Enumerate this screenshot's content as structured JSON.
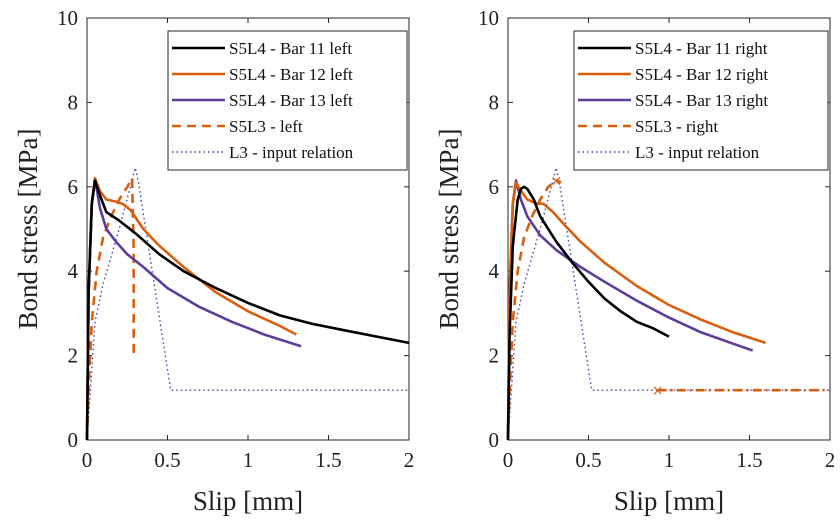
{
  "chart_data": [
    {
      "type": "line",
      "xlabel": "Slip [mm]",
      "ylabel": "Bond stress [MPa]",
      "xlim": [
        0,
        2
      ],
      "ylim": [
        0,
        10
      ],
      "xticks": [
        0,
        0.5,
        1,
        1.5,
        2
      ],
      "xtick_labels": [
        "0",
        "0.5",
        "1",
        "1.5",
        "2"
      ],
      "yticks": [
        0,
        2,
        4,
        6,
        8,
        10
      ],
      "ytick_labels": [
        "0",
        "2",
        "4",
        "6",
        "8",
        "10"
      ],
      "legend_position": "top-right",
      "series": [
        {
          "name": "S5L4 - Bar 11 left",
          "color": "#000000",
          "style": "solid",
          "x": [
            0,
            0.01,
            0.03,
            0.05,
            0.08,
            0.12,
            0.2,
            0.3,
            0.45,
            0.6,
            0.8,
            1.0,
            1.2,
            1.4,
            1.6,
            1.8,
            2.0
          ],
          "y": [
            0,
            3.5,
            5.6,
            6.15,
            5.8,
            5.4,
            5.2,
            4.9,
            4.4,
            4.0,
            3.6,
            3.25,
            2.95,
            2.75,
            2.6,
            2.45,
            2.3
          ]
        },
        {
          "name": "S5L4 - Bar 12 left",
          "color": "#d95f0e",
          "style": "solid",
          "x": [
            0,
            0.01,
            0.03,
            0.05,
            0.08,
            0.12,
            0.18,
            0.22,
            0.27,
            0.35,
            0.45,
            0.6,
            0.8,
            1.0,
            1.2,
            1.3
          ],
          "y": [
            0,
            3.5,
            5.6,
            6.2,
            5.9,
            5.7,
            5.65,
            5.6,
            5.45,
            5.0,
            4.6,
            4.1,
            3.5,
            3.05,
            2.7,
            2.5
          ]
        },
        {
          "name": "S5L4 - Bar 13 left",
          "color": "#5e3c99",
          "style": "solid",
          "x": [
            0,
            0.01,
            0.03,
            0.05,
            0.08,
            0.12,
            0.18,
            0.25,
            0.35,
            0.5,
            0.7,
            0.9,
            1.1,
            1.33
          ],
          "y": [
            0,
            3.5,
            5.6,
            6.2,
            5.5,
            5.0,
            4.7,
            4.4,
            4.1,
            3.6,
            3.15,
            2.8,
            2.5,
            2.22
          ]
        },
        {
          "name": "S5L3 - left",
          "color": "#d95f0e",
          "style": "dashed",
          "x": [
            0,
            0.01,
            0.03,
            0.06,
            0.1,
            0.15,
            0.2,
            0.25,
            0.28,
            0.29,
            0.29
          ],
          "y": [
            0,
            1.2,
            2.8,
            4.0,
            4.8,
            5.3,
            5.7,
            6.0,
            6.2,
            4.5,
            2.0
          ]
        },
        {
          "name": "L3 - input relation",
          "color": "#4444aa",
          "style": "dotted",
          "x": [
            0,
            0.05,
            0.1,
            0.2,
            0.3,
            0.32,
            0.52,
            1.0,
            2.0
          ],
          "y": [
            0,
            2.8,
            3.7,
            5.0,
            6.45,
            6.1,
            1.18,
            1.18,
            1.18
          ]
        }
      ]
    },
    {
      "type": "line",
      "xlabel": "Slip [mm]",
      "ylabel": "Bond stress [MPa]",
      "xlim": [
        0,
        2
      ],
      "ylim": [
        0,
        10
      ],
      "xticks": [
        0,
        0.5,
        1,
        1.5,
        2
      ],
      "xtick_labels": [
        "0",
        "0.5",
        "1",
        "1.5",
        "2"
      ],
      "yticks": [
        0,
        2,
        4,
        6,
        8,
        10
      ],
      "ytick_labels": [
        "0",
        "2",
        "4",
        "6",
        "8",
        "10"
      ],
      "legend_position": "top-right",
      "series": [
        {
          "name": "S5L4 - Bar 11 right",
          "color": "#000000",
          "style": "solid",
          "x": [
            0,
            0.01,
            0.03,
            0.06,
            0.08,
            0.1,
            0.12,
            0.16,
            0.2,
            0.3,
            0.4,
            0.5,
            0.6,
            0.7,
            0.8,
            0.9,
            1.0
          ],
          "y": [
            0,
            2.5,
            4.6,
            5.7,
            5.95,
            6.0,
            5.95,
            5.7,
            5.3,
            4.7,
            4.2,
            3.75,
            3.35,
            3.05,
            2.8,
            2.65,
            2.45
          ]
        },
        {
          "name": "S5L4 - Bar 12 right",
          "color": "#d95f0e",
          "style": "solid",
          "x": [
            0,
            0.01,
            0.03,
            0.05,
            0.08,
            0.12,
            0.18,
            0.22,
            0.28,
            0.35,
            0.45,
            0.6,
            0.8,
            1.0,
            1.2,
            1.4,
            1.6
          ],
          "y": [
            0,
            3.5,
            5.6,
            6.1,
            5.9,
            5.7,
            5.6,
            5.6,
            5.4,
            5.1,
            4.7,
            4.2,
            3.65,
            3.2,
            2.85,
            2.55,
            2.3
          ]
        },
        {
          "name": "S5L4 - Bar 13 right",
          "color": "#5e3c99",
          "style": "solid",
          "x": [
            0,
            0.01,
            0.03,
            0.05,
            0.08,
            0.12,
            0.2,
            0.3,
            0.45,
            0.6,
            0.8,
            1.0,
            1.2,
            1.4,
            1.52
          ],
          "y": [
            0,
            3.5,
            5.6,
            6.15,
            5.7,
            5.3,
            4.85,
            4.5,
            4.1,
            3.75,
            3.3,
            2.9,
            2.55,
            2.28,
            2.12
          ]
        },
        {
          "name": "S5L3 - right",
          "color": "#d95f0e",
          "style": "dashed",
          "x": [
            0,
            0.01,
            0.03,
            0.06,
            0.1,
            0.15,
            0.2,
            0.25,
            0.3,
            0.33
          ],
          "y": [
            0,
            1.2,
            2.8,
            4.0,
            4.8,
            5.3,
            5.7,
            6.0,
            6.15,
            6.1
          ]
        },
        {
          "name": "L3 - input relation",
          "color": "#4444aa",
          "style": "dotted",
          "x": [
            0,
            0.05,
            0.1,
            0.2,
            0.3,
            0.32,
            0.52,
            1.0,
            2.0
          ],
          "y": [
            0,
            2.8,
            3.7,
            5.0,
            6.45,
            6.1,
            1.18,
            1.18,
            1.18
          ]
        }
      ],
      "extra_series": [
        {
          "color": "#d95f0e",
          "style": "dashdot",
          "x": [
            0.93,
            2.0
          ],
          "y": [
            1.18,
            1.18
          ]
        }
      ],
      "markers": [
        {
          "symbol": "×",
          "color": "#d95f0e",
          "x": 0.93,
          "y": 1.18
        },
        {
          "symbol": "×",
          "color": "#d95f0e",
          "x": 0.3,
          "y": 6.15
        }
      ]
    }
  ]
}
